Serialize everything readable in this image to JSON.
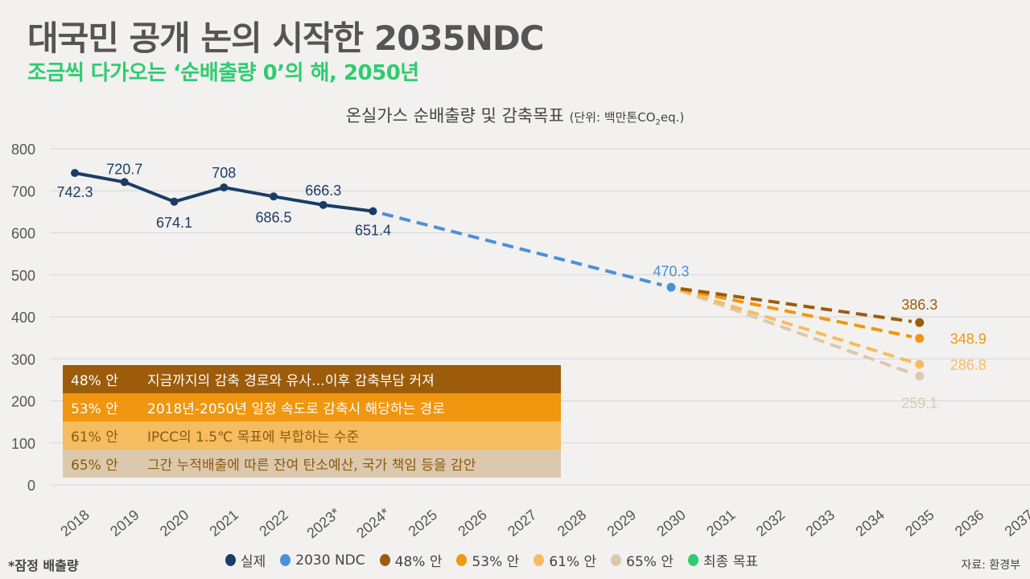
{
  "header": {
    "title": "대국민 공개 논의 시작한 2035NDC",
    "subtitle": "조금씩 다가오는 ‘순배출량 0’의 해, 2050년"
  },
  "chart_title": {
    "main": "온실가스 순배출량 및 감축목표",
    "unit_prefix": "(단위: 백만톤CO",
    "unit_sub": "2",
    "unit_suffix": "eq.)"
  },
  "colors": {
    "actual": "#1c3c66",
    "ndc2030": "#4a90d9",
    "p48": "#9c5c0a",
    "p53": "#f0960f",
    "p61": "#f5bc60",
    "p65": "#dcc8ac",
    "final": "#2ecc71",
    "grid": "#d5d5d5"
  },
  "chart_data": {
    "type": "line",
    "title": "온실가스 순배출량 및 감축목표",
    "xlabel": "",
    "ylabel": "백만톤CO2eq.",
    "ylim": [
      0,
      800
    ],
    "yticks": [
      0,
      100,
      200,
      300,
      400,
      500,
      600,
      700,
      800
    ],
    "grid": true,
    "categories": [
      "2018",
      "2019",
      "2020",
      "2021",
      "2022",
      "2023*",
      "2024*",
      "2025",
      "2026",
      "2027",
      "2028",
      "2029",
      "2030",
      "2031",
      "2032",
      "2033",
      "2034",
      "2035",
      "2036",
      "2037"
    ],
    "series": [
      {
        "name": "실제",
        "key": "actual",
        "style": "solid",
        "x": [
          2018,
          2019,
          2020,
          2021,
          2022,
          2023,
          2024
        ],
        "values": [
          742.3,
          720.7,
          674.1,
          708,
          686.5,
          666.3,
          651.4
        ],
        "labels": [
          "742.3",
          "720.7",
          "674.1",
          "708",
          "686.5",
          "666.3",
          "651.4"
        ]
      },
      {
        "name": "2030 NDC",
        "key": "ndc2030",
        "style": "dashed",
        "x": [
          2024,
          2030
        ],
        "values": [
          651.4,
          470.3
        ],
        "labels": [
          "",
          "470.3"
        ]
      },
      {
        "name": "48% 안",
        "key": "p48",
        "style": "dashed",
        "x": [
          2030,
          2035
        ],
        "values": [
          470.3,
          386.3
        ],
        "labels": [
          "",
          "386.3"
        ]
      },
      {
        "name": "53% 안",
        "key": "p53",
        "style": "dashed",
        "x": [
          2030,
          2035
        ],
        "values": [
          470.3,
          348.9
        ],
        "labels": [
          "",
          "348.9"
        ]
      },
      {
        "name": "61% 안",
        "key": "p61",
        "style": "dashed",
        "x": [
          2030,
          2035
        ],
        "values": [
          470.3,
          286.8
        ],
        "labels": [
          "",
          "286.8"
        ]
      },
      {
        "name": "65% 안",
        "key": "p65",
        "style": "dashed",
        "x": [
          2030,
          2035
        ],
        "values": [
          470.3,
          259.1
        ],
        "labels": [
          "",
          "259.1"
        ]
      }
    ],
    "legend": [
      "실제",
      "2030 NDC",
      "48% 안",
      "53% 안",
      "61% 안",
      "65% 안",
      "최종 목표"
    ],
    "legend_position": "bottom"
  },
  "scenarios": [
    {
      "pct": "48% 안",
      "desc": "지금까지의 감축 경로와 유사…이후 감축부담 커져",
      "bg": "#9c5c0a",
      "fg": "#ffffff"
    },
    {
      "pct": "53% 안",
      "desc": "2018년-2050년 일정 속도로 감축시 해당하는 경로",
      "bg": "#f0960f",
      "fg": "#ffffff"
    },
    {
      "pct": "61% 안",
      "desc": "IPCC의 1.5℃ 목표에 부합하는 수준",
      "bg": "#f5bc60",
      "fg": "#8a5a10"
    },
    {
      "pct": "65% 안",
      "desc": "그간 누적배출에 따른 잔여 탄소예산, 국가 책임 등을 감안",
      "bg": "#dcc8ac",
      "fg": "#8a5a10"
    }
  ],
  "legend": [
    {
      "label": "실제",
      "color": "#1c3c66"
    },
    {
      "label": "2030 NDC",
      "color": "#4a90d9"
    },
    {
      "label": "48% 안",
      "color": "#9c5c0a"
    },
    {
      "label": "53% 안",
      "color": "#f0960f"
    },
    {
      "label": "61% 안",
      "color": "#f5bc60"
    },
    {
      "label": "65% 안",
      "color": "#dcc8ac"
    },
    {
      "label": "최종 목표",
      "color": "#2ecc71"
    }
  ],
  "footnote": "*잠정 배출량",
  "source": "자료: 환경부"
}
